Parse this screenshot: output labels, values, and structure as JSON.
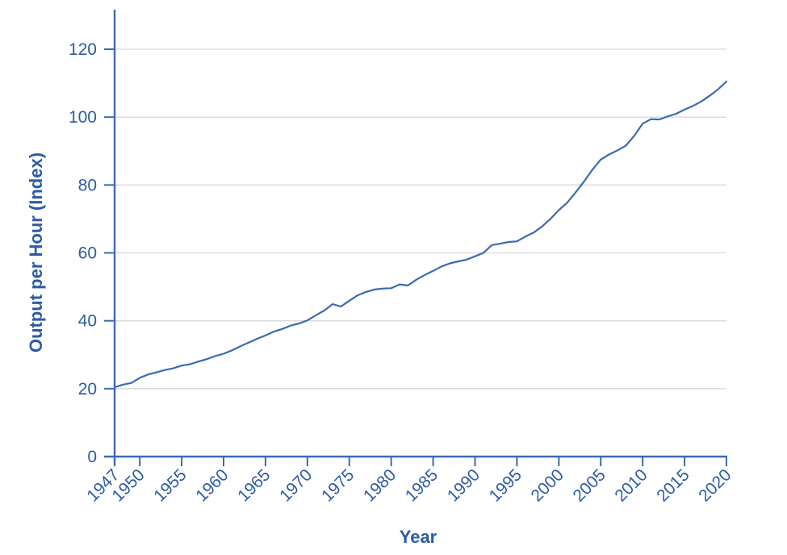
{
  "chart_data": {
    "type": "line",
    "title": "",
    "xlabel": "Year",
    "ylabel": "Output per Hour (Index)",
    "legend": "none",
    "grid": "horizontal-only",
    "xlim": [
      1947,
      2020
    ],
    "ylim": [
      0,
      120
    ],
    "x_ticks": [
      1947,
      1950,
      1955,
      1960,
      1965,
      1970,
      1975,
      1980,
      1985,
      1990,
      1995,
      2000,
      2005,
      2010,
      2015,
      2020
    ],
    "y_ticks": [
      0,
      20,
      40,
      60,
      80,
      100,
      120
    ],
    "series": [
      {
        "name": "Output per Hour",
        "x": [
          1947,
          1948,
          1949,
          1950,
          1951,
          1952,
          1953,
          1954,
          1955,
          1956,
          1957,
          1958,
          1959,
          1960,
          1961,
          1962,
          1963,
          1964,
          1965,
          1966,
          1967,
          1968,
          1969,
          1970,
          1971,
          1972,
          1973,
          1974,
          1975,
          1976,
          1977,
          1978,
          1979,
          1980,
          1981,
          1982,
          1983,
          1984,
          1985,
          1986,
          1987,
          1988,
          1989,
          1990,
          1991,
          1992,
          1993,
          1994,
          1995,
          1996,
          1997,
          1998,
          1999,
          2000,
          2001,
          2002,
          2003,
          2004,
          2005,
          2006,
          2007,
          2008,
          2009,
          2010,
          2011,
          2012,
          2013,
          2014,
          2015,
          2016,
          2017,
          2018,
          2019,
          2020
        ],
        "values": [
          20.4,
          21.2,
          21.7,
          23.2,
          24.2,
          24.8,
          25.5,
          26.0,
          26.8,
          27.2,
          28.0,
          28.7,
          29.6,
          30.3,
          31.3,
          32.5,
          33.6,
          34.7,
          35.7,
          36.8,
          37.6,
          38.6,
          39.2,
          40.1,
          41.6,
          43.0,
          44.9,
          44.2,
          45.9,
          47.5,
          48.5,
          49.2,
          49.5,
          49.6,
          50.7,
          50.4,
          52.1,
          53.5,
          54.7,
          56.0,
          56.9,
          57.5,
          58.0,
          59.0,
          60.0,
          62.3,
          62.7,
          63.2,
          63.4,
          64.8,
          66.0,
          67.8,
          70.0,
          72.6,
          74.8,
          77.8,
          81.0,
          84.5,
          87.5,
          89.0,
          90.2,
          91.6,
          94.5,
          98.1,
          99.4,
          99.3,
          100.2,
          101.0,
          102.2,
          103.3,
          104.6,
          106.3,
          108.2,
          110.5
        ]
      }
    ]
  },
  "colors": {
    "line": "#3a6bb2",
    "axis": "#3a6bb2",
    "tick_text": "#2c5ba6",
    "title_text": "#2c5ba6",
    "gridline": "#d9d9d9",
    "background": "#ffffff"
  }
}
